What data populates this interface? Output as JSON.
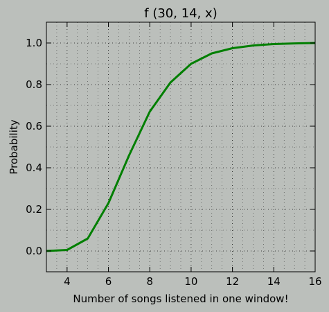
{
  "chart_data": {
    "type": "line",
    "title": "f (30, 14, x)",
    "xlabel": "Number of songs listened in one window!",
    "ylabel": "Probability",
    "xlim": [
      3,
      16
    ],
    "ylim": [
      -0.1,
      1.1
    ],
    "xticks": [
      4,
      6,
      8,
      10,
      12,
      14,
      16
    ],
    "xtick_labels": [
      "4",
      "6",
      "8",
      "10",
      "12",
      "14",
      "16"
    ],
    "yticks": [
      0.0,
      0.2,
      0.4,
      0.6,
      0.8,
      1.0
    ],
    "ytick_labels": [
      "0.0",
      "0.2",
      "0.4",
      "0.6",
      "0.8",
      "1.0"
    ],
    "grid": "dotted, major and minor",
    "series": [
      {
        "color": "#007f00",
        "x": [
          3,
          4,
          5,
          6,
          7,
          8,
          9,
          10,
          11,
          12,
          13,
          14,
          15,
          16
        ],
        "values": [
          0.0,
          0.005,
          0.06,
          0.23,
          0.46,
          0.67,
          0.81,
          0.9,
          0.95,
          0.975,
          0.988,
          0.995,
          0.998,
          1.0
        ]
      }
    ]
  },
  "colors": {
    "background": "#bbbfbb",
    "plot_background": "#bbbfbb",
    "line": "#007f00",
    "axes": "#000000"
  }
}
